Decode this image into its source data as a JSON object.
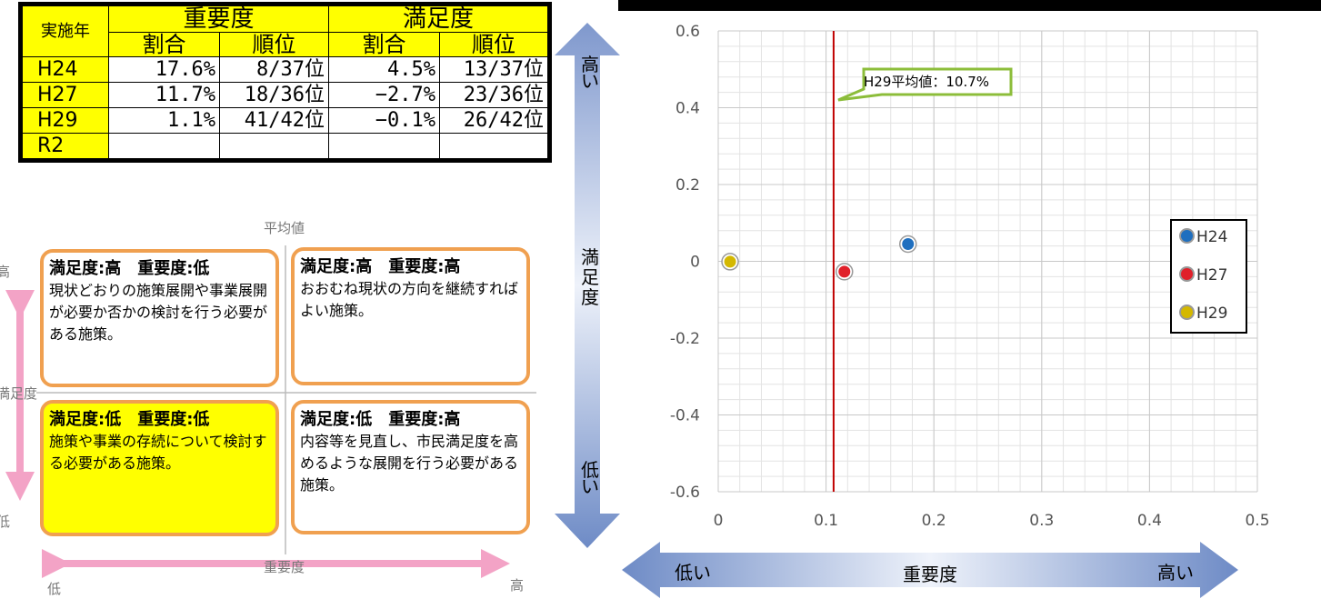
{
  "table": {
    "corner": "実施年",
    "groups": [
      "重要度",
      "満足度"
    ],
    "subheaders": [
      "割合",
      "順位",
      "割合",
      "順位"
    ],
    "rows": [
      {
        "year": "H24",
        "imp_ratio": "17.6%",
        "imp_rank": "8/37位",
        "sat_ratio": "4.5%",
        "sat_rank": "13/37位"
      },
      {
        "year": "H27",
        "imp_ratio": "11.7%",
        "imp_rank": "18/36位",
        "sat_ratio": "−2.7%",
        "sat_rank": "23/36位"
      },
      {
        "year": "H29",
        "imp_ratio": "1.1%",
        "imp_rank": "41/42位",
        "sat_ratio": "−0.1%",
        "sat_rank": "26/42位"
      },
      {
        "year": "R2",
        "imp_ratio": "",
        "imp_rank": "",
        "sat_ratio": "",
        "sat_rank": ""
      }
    ]
  },
  "guide": {
    "average_label": "平均値",
    "y_label": "満足度",
    "y_high": "高",
    "y_low": "低",
    "x_label": "重要度",
    "x_low": "低",
    "x_high": "高",
    "quadrants": [
      {
        "head": "満足度:高　重要度:低",
        "text": "現状どおりの施策展開や事業展開が必要か否かの検討を行う必要がある施策。",
        "highlight": false
      },
      {
        "head": "満足度:高　重要度:高",
        "text": "おおむね現状の方向を継続すればよい施策。",
        "highlight": false
      },
      {
        "head": "満足度:低　重要度:低",
        "text": "施策や事業の存続について検討する必要がある施策。",
        "highlight": true
      },
      {
        "head": "満足度:低　重要度:高",
        "text": "内容等を見直し、市民満足度を高めるような展開を行う必要がある施策。",
        "highlight": false
      }
    ]
  },
  "side_arrow": {
    "high": "高い",
    "label": "満足度",
    "low": "低い"
  },
  "bottom_arrow": {
    "low": "低い",
    "label": "重要度",
    "high": "高い"
  },
  "chart_data": {
    "type": "scatter",
    "xlim": [
      0,
      0.5
    ],
    "ylim": [
      -0.6,
      0.6
    ],
    "x_ticks": [
      "0",
      "0.1",
      "0.2",
      "0.3",
      "0.4",
      "0.5"
    ],
    "y_ticks": [
      "0.6",
      "0.4",
      "0.2",
      "0",
      "-0.2",
      "-0.4",
      "-0.6"
    ],
    "grid": true,
    "legend_position": "right",
    "series": [
      {
        "name": "H24",
        "x": 0.176,
        "y": 0.045,
        "color": "#1f6fbf"
      },
      {
        "name": "H27",
        "x": 0.117,
        "y": -0.027,
        "color": "#e0202a"
      },
      {
        "name": "H29",
        "x": 0.011,
        "y": -0.001,
        "color": "#d4b800"
      }
    ],
    "reference_line": {
      "x": 0.107,
      "color": "#c00000"
    },
    "annotation": "H29平均値：10.7%"
  }
}
